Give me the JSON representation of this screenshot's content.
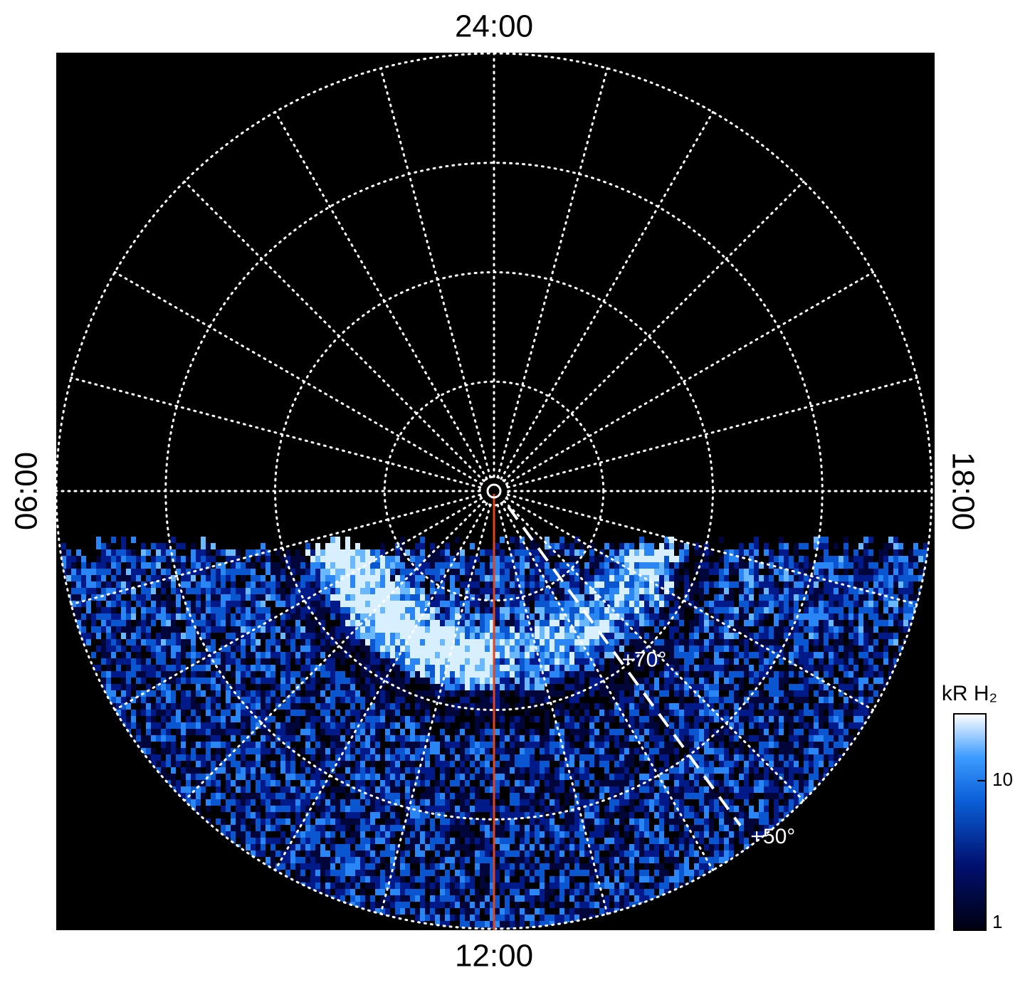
{
  "chart_data": {
    "type": "polar-map",
    "hour_labels": {
      "top": "24:00",
      "bottom": "12:00",
      "left": "06:00",
      "right": "18:00"
    },
    "rlim": [
      90,
      50
    ],
    "lat_circles": [
      80,
      70,
      60,
      50
    ],
    "lat_labels": [
      {
        "value": 70,
        "label": "+70°"
      },
      {
        "value": 50,
        "label": "+50°"
      }
    ],
    "colorbar": {
      "label": "kR H₂",
      "scale": "log",
      "clim": [
        1,
        28
      ],
      "ticks": [
        1,
        10
      ]
    }
  }
}
